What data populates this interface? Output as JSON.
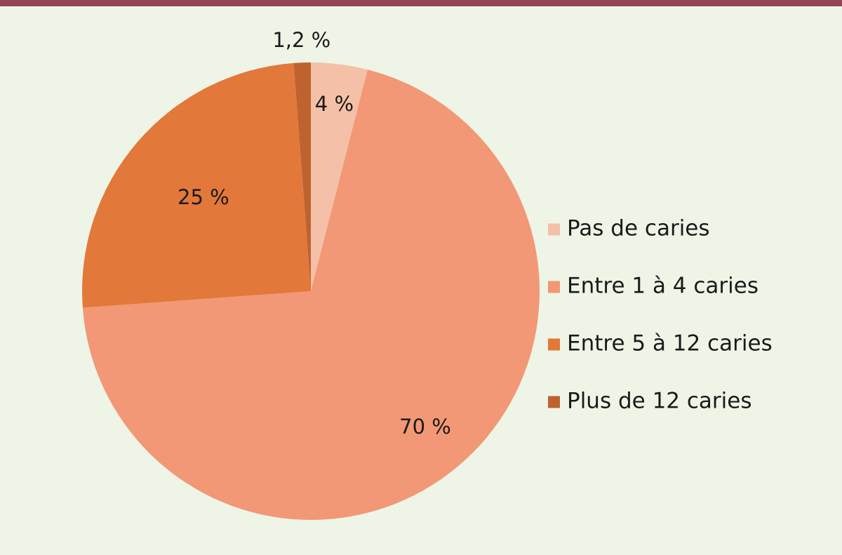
{
  "chart_data": {
    "type": "pie",
    "title": "",
    "legend_position": "right",
    "start": "top",
    "direction": "clockwise",
    "slices": [
      {
        "label": "Pas de caries",
        "value": 4,
        "value_label": "4 %",
        "color": "#f5c0a8"
      },
      {
        "label": "Entre 1 à 4 caries",
        "value": 70,
        "value_label": "70 %",
        "color": "#f29876"
      },
      {
        "label": "Entre 5 à 12 caries",
        "value": 25,
        "value_label": "25 %",
        "color": "#e3783b"
      },
      {
        "label": "Plus de 12 caries",
        "value": 1.2,
        "value_label": "1,2 %",
        "color": "#be632f"
      }
    ]
  }
}
